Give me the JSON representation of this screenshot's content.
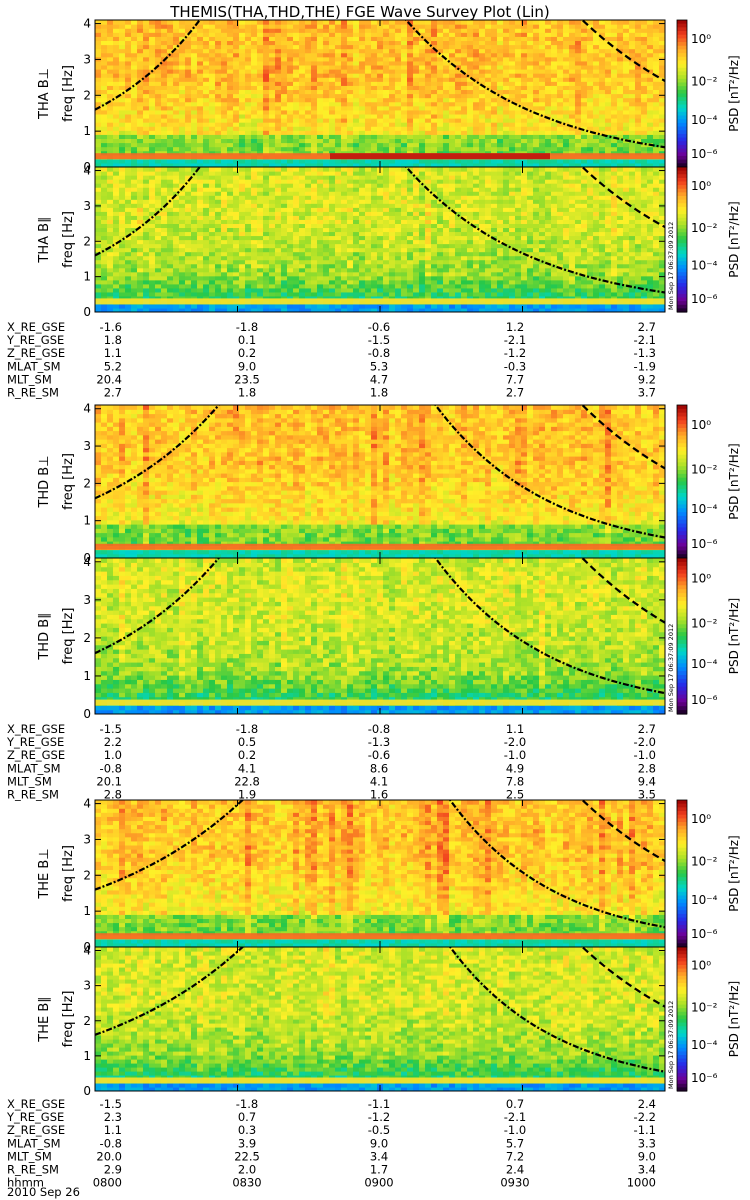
{
  "title": "THEMIS(THA,THD,THE) FGE Wave Survey Plot (Lin)",
  "colorbar_label": "PSD [nT²/Hz]",
  "colorbar_ticks": [
    "10⁰",
    "10⁻²",
    "10⁻⁴",
    "10⁻⁶"
  ],
  "freq_label": "freq [Hz]",
  "stamp": "Mon Sep 17 06:37:09 2012",
  "date_label": "2010 Sep 26",
  "colors": {
    "background": "#ffffff",
    "curve": "#000000",
    "text": "#000000"
  },
  "chart_data": [
    {
      "type": "heatmap",
      "probe": "THA",
      "panels": [
        {
          "ylabel": "THA B⊥",
          "ylim": [
            0,
            4.1
          ],
          "yticks": [
            "0",
            "1",
            "2",
            "3",
            "4"
          ],
          "zscale": "log",
          "zlim": [
            1e-06,
            10
          ]
        },
        {
          "ylabel": "THA B∥",
          "ylim": [
            0,
            4.1
          ],
          "yticks": [
            "0",
            "1",
            "2",
            "3",
            "4"
          ],
          "zscale": "log",
          "zlim": [
            1e-06,
            10
          ]
        }
      ],
      "ephemeris": [
        {
          "label": "X_RE_GSE",
          "values": [
            "-1.6",
            "-1.8",
            "-0.6",
            "1.2",
            "2.7"
          ]
        },
        {
          "label": "Y_RE_GSE",
          "values": [
            "1.8",
            "0.1",
            "-1.5",
            "-2.1",
            "-2.1"
          ]
        },
        {
          "label": "Z_RE_GSE",
          "values": [
            "1.1",
            "0.2",
            "-0.8",
            "-1.2",
            "-1.3"
          ]
        },
        {
          "label": "MLAT_SM",
          "values": [
            "5.2",
            "9.0",
            "5.3",
            "-0.3",
            "-1.9"
          ]
        },
        {
          "label": "MLT_SM",
          "values": [
            "20.4",
            "23.5",
            "4.7",
            "7.7",
            "9.2"
          ]
        },
        {
          "label": "R_RE_SM",
          "values": [
            "2.7",
            "1.8",
            "1.8",
            "2.7",
            "3.7"
          ]
        }
      ]
    },
    {
      "type": "heatmap",
      "probe": "THD",
      "panels": [
        {
          "ylabel": "THD B⊥",
          "ylim": [
            0,
            4.1
          ],
          "yticks": [
            "0",
            "1",
            "2",
            "3",
            "4"
          ],
          "zscale": "log",
          "zlim": [
            1e-06,
            10
          ]
        },
        {
          "ylabel": "THD B∥",
          "ylim": [
            0,
            4.1
          ],
          "yticks": [
            "0",
            "1",
            "2",
            "3",
            "4"
          ],
          "zscale": "log",
          "zlim": [
            1e-06,
            10
          ]
        }
      ],
      "ephemeris": [
        {
          "label": "X_RE_GSE",
          "values": [
            "-1.5",
            "-1.8",
            "-0.8",
            "1.1",
            "2.7"
          ]
        },
        {
          "label": "Y_RE_GSE",
          "values": [
            "2.2",
            "0.5",
            "-1.3",
            "-2.0",
            "-2.0"
          ]
        },
        {
          "label": "Z_RE_GSE",
          "values": [
            "1.0",
            "0.2",
            "-0.6",
            "-1.0",
            "-1.0"
          ]
        },
        {
          "label": "MLAT_SM",
          "values": [
            "-0.8",
            "4.1",
            "8.6",
            "4.9",
            "2.8"
          ]
        },
        {
          "label": "MLT_SM",
          "values": [
            "20.1",
            "22.8",
            "4.1",
            "7.8",
            "9.4"
          ]
        },
        {
          "label": "R_RE_SM",
          "values": [
            "2.8",
            "1.9",
            "1.6",
            "2.5",
            "3.5"
          ]
        }
      ]
    },
    {
      "type": "heatmap",
      "probe": "THE",
      "panels": [
        {
          "ylabel": "THE B⊥",
          "ylim": [
            0,
            4.1
          ],
          "yticks": [
            "0",
            "1",
            "2",
            "3",
            "4"
          ],
          "zscale": "log",
          "zlim": [
            1e-06,
            10
          ]
        },
        {
          "ylabel": "THE B∥",
          "ylim": [
            0,
            4.1
          ],
          "yticks": [
            "0",
            "1",
            "2",
            "3",
            "4"
          ],
          "zscale": "log",
          "zlim": [
            1e-06,
            10
          ]
        }
      ],
      "ephemeris": [
        {
          "label": "X_RE_GSE",
          "values": [
            "-1.5",
            "-1.8",
            "-1.1",
            "0.7",
            "2.4"
          ]
        },
        {
          "label": "Y_RE_GSE",
          "values": [
            "2.3",
            "0.7",
            "-1.2",
            "-2.1",
            "-2.2"
          ]
        },
        {
          "label": "Z_RE_GSE",
          "values": [
            "1.1",
            "0.3",
            "-0.5",
            "-1.0",
            "-1.1"
          ]
        },
        {
          "label": "MLAT_SM",
          "values": [
            "-0.8",
            "3.9",
            "9.0",
            "5.7",
            "3.3"
          ]
        },
        {
          "label": "MLT_SM",
          "values": [
            "20.0",
            "22.5",
            "3.4",
            "7.2",
            "9.0"
          ]
        },
        {
          "label": "R_RE_SM",
          "values": [
            "2.9",
            "2.0",
            "1.7",
            "2.4",
            "3.4"
          ]
        },
        {
          "label": "hhmm",
          "values": [
            "0800",
            "0830",
            "0900",
            "0930",
            "1000"
          ]
        }
      ]
    }
  ]
}
